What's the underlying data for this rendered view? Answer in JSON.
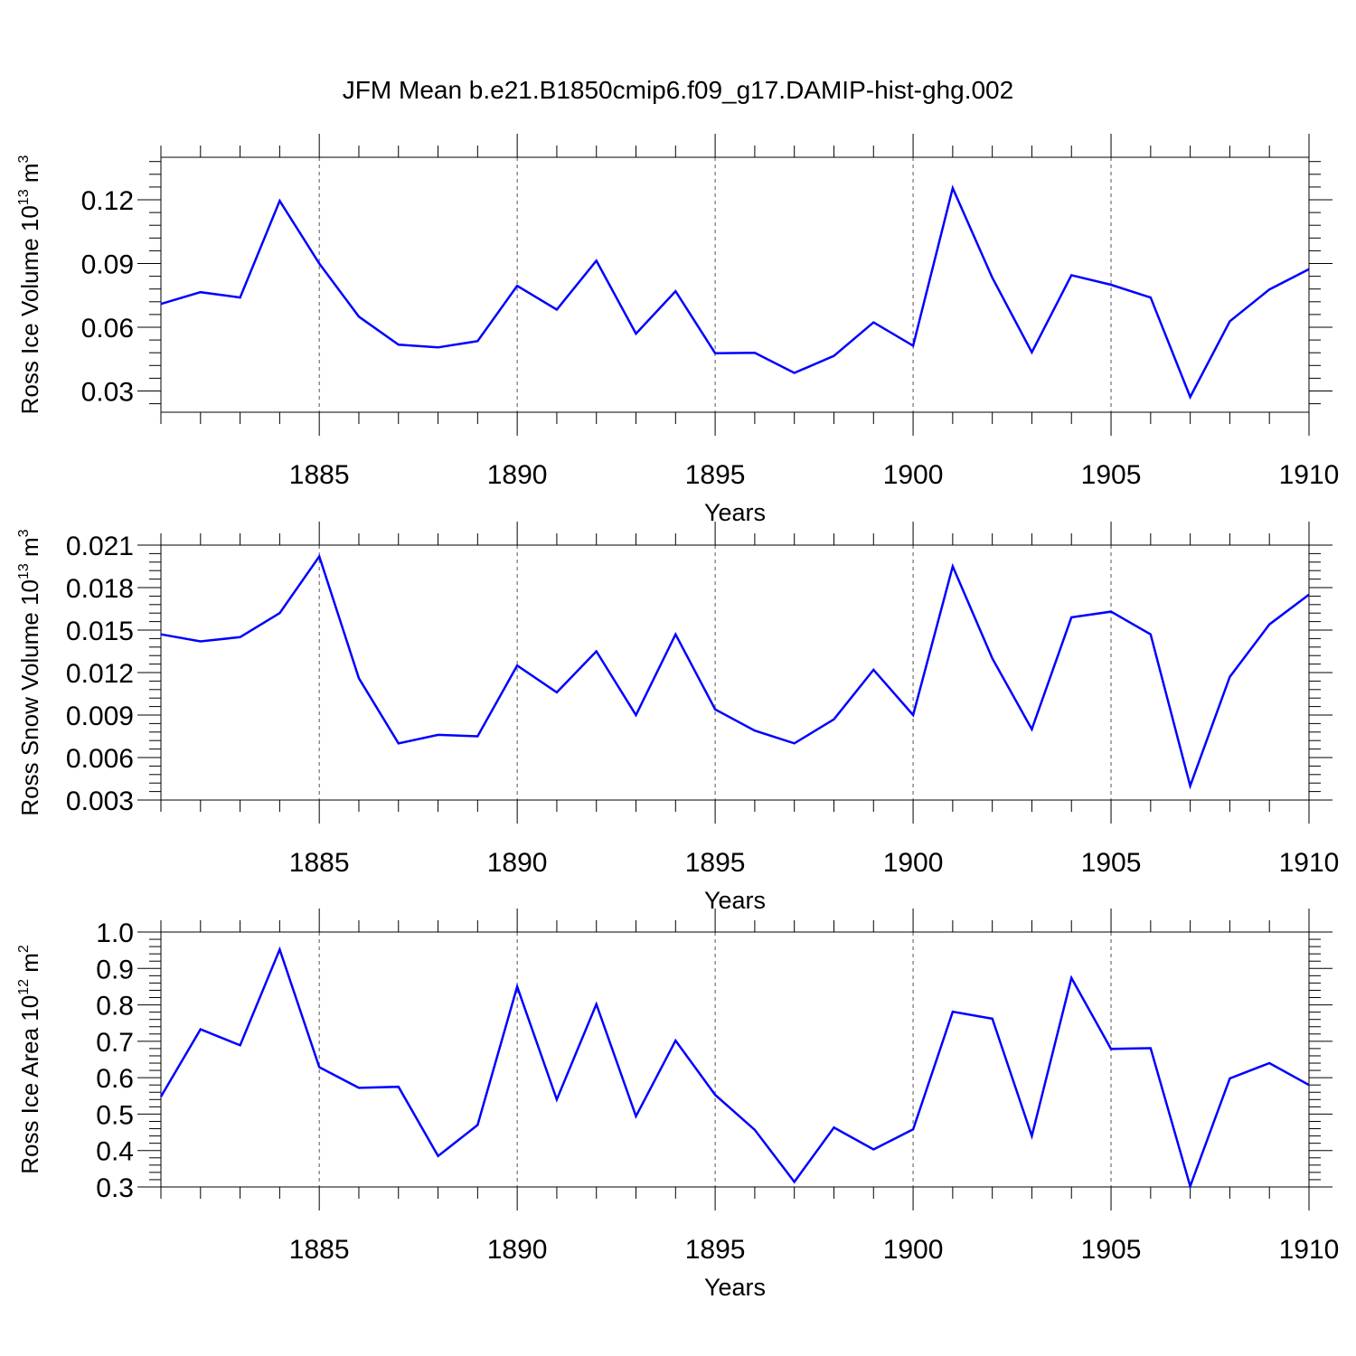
{
  "title": "JFM Mean b.e21.B1850cmip6.f09_g17.DAMIP-hist-ghg.002",
  "colors": {
    "line": "#0000ff",
    "axis": "#000000",
    "grid": "#555555"
  },
  "chart_data": [
    {
      "type": "line",
      "title": "",
      "xlabel": "Years",
      "ylabel": "Ross Ice Volume 10",
      "ylabel_exp": "13",
      "ylabel_unit": " m",
      "ylabel_unit_exp": "3",
      "xlim": [
        1881,
        1910
      ],
      "ylim": [
        0.02,
        0.14
      ],
      "xticks": [
        1885,
        1890,
        1895,
        1900,
        1905,
        1910
      ],
      "xtick_labels": [
        "1885",
        "1890",
        "1895",
        "1900",
        "1905",
        "1910"
      ],
      "yticks": [
        0.03,
        0.06,
        0.09,
        0.12
      ],
      "ytick_labels": [
        "0.03",
        "0.06",
        "0.09",
        "0.12"
      ],
      "grid": "vertical dashed at major x ticks",
      "x": [
        1881,
        1882,
        1883,
        1884,
        1885,
        1886,
        1887,
        1888,
        1889,
        1890,
        1891,
        1892,
        1893,
        1894,
        1895,
        1896,
        1897,
        1898,
        1899,
        1900,
        1901,
        1902,
        1903,
        1904,
        1905,
        1906,
        1907,
        1908,
        1909,
        1910
      ],
      "series": [
        {
          "values": [
            0.071,
            0.0765,
            0.074,
            0.1195,
            0.09,
            0.065,
            0.0518,
            0.0505,
            0.0535,
            0.0795,
            0.0683,
            0.0913,
            0.057,
            0.077,
            0.0478,
            0.048,
            0.0385,
            0.0465,
            0.0623,
            0.0513,
            0.1255,
            0.0833,
            0.0482,
            0.0845,
            0.08,
            0.074,
            0.0272,
            0.0628,
            0.0778,
            0.0873
          ]
        }
      ]
    },
    {
      "type": "line",
      "title": "",
      "xlabel": "Years",
      "ylabel": "Ross Snow Volume 10",
      "ylabel_exp": "13",
      "ylabel_unit": " m",
      "ylabel_unit_exp": "3",
      "xlim": [
        1881,
        1910
      ],
      "ylim": [
        0.003,
        0.021
      ],
      "xticks": [
        1885,
        1890,
        1895,
        1900,
        1905,
        1910
      ],
      "xtick_labels": [
        "1885",
        "1890",
        "1895",
        "1900",
        "1905",
        "1910"
      ],
      "yticks": [
        0.003,
        0.006,
        0.009,
        0.012,
        0.015,
        0.018,
        0.021
      ],
      "ytick_labels": [
        "0.003",
        "0.006",
        "0.009",
        "0.012",
        "0.015",
        "0.018",
        "0.021"
      ],
      "grid": "vertical dashed at major x ticks",
      "x": [
        1881,
        1882,
        1883,
        1884,
        1885,
        1886,
        1887,
        1888,
        1889,
        1890,
        1891,
        1892,
        1893,
        1894,
        1895,
        1896,
        1897,
        1898,
        1899,
        1900,
        1901,
        1902,
        1903,
        1904,
        1905,
        1906,
        1907,
        1908,
        1909,
        1910
      ],
      "series": [
        {
          "values": [
            0.0147,
            0.0142,
            0.0145,
            0.0162,
            0.0202,
            0.0116,
            0.007,
            0.0076,
            0.0075,
            0.0125,
            0.0106,
            0.0135,
            0.009,
            0.0147,
            0.0094,
            0.0079,
            0.007,
            0.0087,
            0.0122,
            0.009,
            0.0195,
            0.013,
            0.008,
            0.0159,
            0.0163,
            0.0147,
            0.004,
            0.0117,
            0.0154,
            0.0175
          ]
        }
      ]
    },
    {
      "type": "line",
      "title": "",
      "xlabel": "Years",
      "ylabel": "Ross Ice Area 10",
      "ylabel_exp": "12",
      "ylabel_unit": " m",
      "ylabel_unit_exp": "2",
      "xlim": [
        1881,
        1910
      ],
      "ylim": [
        0.3,
        1.0
      ],
      "xticks": [
        1885,
        1890,
        1895,
        1900,
        1905,
        1910
      ],
      "xtick_labels": [
        "1885",
        "1890",
        "1895",
        "1900",
        "1905",
        "1910"
      ],
      "yticks": [
        0.3,
        0.4,
        0.5,
        0.6,
        0.7,
        0.8,
        0.9,
        1.0
      ],
      "ytick_labels": [
        "0.3",
        "0.4",
        "0.5",
        "0.6",
        "0.7",
        "0.8",
        "0.9",
        "1.0"
      ],
      "grid": "vertical dashed at major x ticks",
      "x": [
        1881,
        1882,
        1883,
        1884,
        1885,
        1886,
        1887,
        1888,
        1889,
        1890,
        1891,
        1892,
        1893,
        1894,
        1895,
        1896,
        1897,
        1898,
        1899,
        1900,
        1901,
        1902,
        1903,
        1904,
        1905,
        1906,
        1907,
        1908,
        1909,
        1910
      ],
      "series": [
        {
          "values": [
            0.548,
            0.733,
            0.689,
            0.952,
            0.629,
            0.572,
            0.575,
            0.385,
            0.47,
            0.85,
            0.54,
            0.802,
            0.494,
            0.702,
            0.553,
            0.457,
            0.314,
            0.463,
            0.403,
            0.458,
            0.781,
            0.762,
            0.44,
            0.874,
            0.679,
            0.681,
            0.302,
            0.598,
            0.64,
            0.58
          ]
        }
      ]
    }
  ]
}
